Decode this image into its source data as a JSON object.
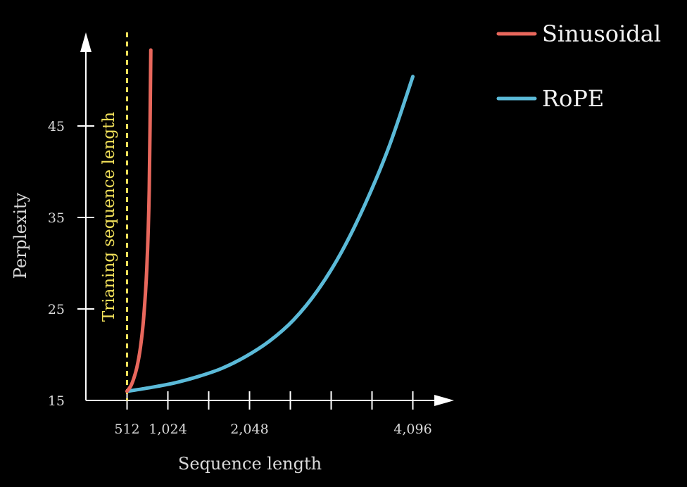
{
  "chart_data": {
    "type": "line",
    "xlabel": "Sequence length",
    "ylabel": "Perplexity",
    "xlim": [
      0,
      4600
    ],
    "ylim": [
      15,
      54
    ],
    "x_ticks": [
      512,
      1024,
      1536,
      2048,
      2560,
      3072,
      3584,
      4096
    ],
    "x_tick_labels": [
      {
        "value": 512,
        "label": "512"
      },
      {
        "value": 1024,
        "label": "1,024"
      },
      {
        "value": 2048,
        "label": "2,048"
      },
      {
        "value": 4096,
        "label": "4,096"
      }
    ],
    "y_ticks": [
      {
        "value": 15,
        "label": "15"
      },
      {
        "value": 25,
        "label": "25"
      },
      {
        "value": 35,
        "label": "35"
      },
      {
        "value": 45,
        "label": "45"
      }
    ],
    "series": [
      {
        "name": "Sinusoidal",
        "color": "#e8675c",
        "x": [
          512,
          560,
          600,
          640,
          680,
          720,
          760,
          790,
          810
        ],
        "y": [
          16.0,
          16.6,
          17.5,
          18.8,
          20.8,
          24.0,
          29.5,
          38.0,
          53.3
        ]
      },
      {
        "name": "RoPE",
        "color": "#5bbad8",
        "x": [
          512,
          800,
          1100,
          1400,
          1700,
          2000,
          2300,
          2600,
          2900,
          3200,
          3500,
          3800,
          4096
        ],
        "y": [
          16.0,
          16.4,
          16.9,
          17.6,
          18.5,
          19.8,
          21.5,
          23.8,
          27.0,
          31.2,
          36.5,
          42.8,
          50.4
        ]
      }
    ],
    "annotations": [
      {
        "text": "Trianing sequence length",
        "x": 512,
        "color": "#f1e05a",
        "style": "dashed vertical line"
      }
    ],
    "legend": {
      "position": "top-right"
    },
    "grid": false
  }
}
